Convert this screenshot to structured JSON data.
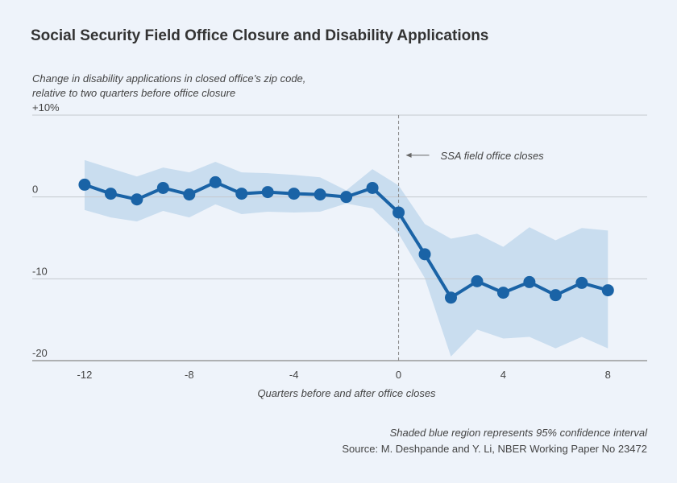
{
  "chart_data": {
    "type": "line",
    "title": "Social Security Field Office Closure and Disability Applications",
    "ylabel": [
      "Change in disability applications in closed office’s zip code,",
      "relative to two quarters before office closure"
    ],
    "xlabel": "Quarters before and after office closes",
    "x": [
      -12,
      -11,
      -10,
      -9,
      -8,
      -7,
      -6,
      -5,
      -4,
      -3,
      -2,
      -1,
      0,
      1,
      2,
      3,
      4,
      5,
      6,
      7,
      8
    ],
    "values": [
      1.5,
      0.4,
      -0.3,
      1.1,
      0.3,
      1.8,
      0.4,
      0.6,
      0.4,
      0.3,
      0,
      1.1,
      -1.9,
      -7.0,
      -12.3,
      -10.3,
      -11.7,
      -10.4,
      -12.0,
      -10.5,
      -11.4
    ],
    "ci_upper": [
      4.5,
      3.5,
      2.5,
      3.6,
      3.0,
      4.3,
      3.0,
      2.9,
      2.7,
      2.4,
      0.8,
      3.4,
      1.4,
      -3.3,
      -5.1,
      -4.5,
      -6.1,
      -3.7,
      -5.3,
      -3.8,
      -4.1
    ],
    "ci_lower": [
      -1.6,
      -2.5,
      -3.0,
      -1.7,
      -2.5,
      -0.9,
      -2.1,
      -1.8,
      -1.9,
      -1.8,
      -0.8,
      -1.4,
      -4.5,
      -9.9,
      -19.5,
      -16.2,
      -17.3,
      -17.1,
      -18.5,
      -17.1,
      -18.5
    ],
    "color": "#1a63a6",
    "band_color": "#c9ddef",
    "xlim": [
      -14,
      9.5
    ],
    "ylim": [
      -20,
      10
    ],
    "xticks": [
      -12,
      -8,
      -4,
      0,
      4,
      8
    ],
    "yticks": [
      -20,
      -10,
      0,
      {
        "value": 10,
        "label": "+10%"
      }
    ],
    "grid": true,
    "vline": 0,
    "vline_label": "SSA field office closes",
    "notes": [
      "Shaded blue region represents 95% confidence interval",
      "Source: M. Deshpande and Y. Li, NBER Working Paper No 23472"
    ]
  }
}
